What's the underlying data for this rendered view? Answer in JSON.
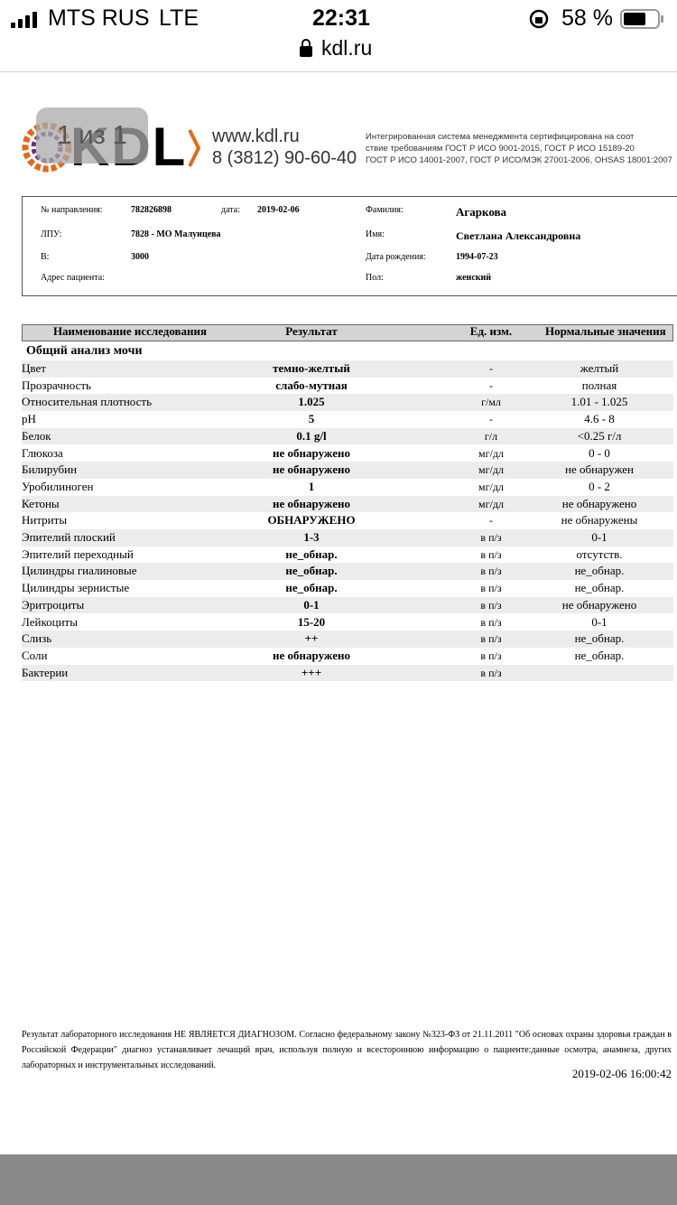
{
  "status_bar": {
    "carrier": "MTS RUS",
    "network": "LTE",
    "time": "22:31",
    "battery": "58 %",
    "url": "kdl.ru"
  },
  "viewer": {
    "page_counter": "1 из 1"
  },
  "header": {
    "logo": "KDL",
    "site": "www.kdl.ru",
    "phone": "8 (3812) 90-60-40",
    "certification": [
      "Интегрированная система менеджмента сертифицирована на соот",
      "ствие требованиям ГОСТ Р ИСО 9001-2015, ГОСТ Р ИСО 15189-20",
      "ГОСТ Р ИСО 14001-2007, ГОСТ Р ИСО/МЭК 27001-2006, OHSAS 18001:2007"
    ]
  },
  "patient": {
    "referral_label": "№ направления:",
    "referral": "782826898",
    "date_label": "дата:",
    "date": "2019-02-06",
    "lpu_label": "ЛПУ:",
    "lpu": "7828 - МО Малунцева",
    "b_label": "В:",
    "b": "3000",
    "address_label": "Адрес пациента:",
    "surname_label": "Фамилия:",
    "surname": "Агаркова",
    "name_label": "Имя:",
    "name": "Светлана Александровна",
    "birth_label": "Дата рождения:",
    "birth": "1994-07-23",
    "sex_label": "Пол:",
    "sex": "женский"
  },
  "table": {
    "columns": [
      "Наименование исследования",
      "Результат",
      "Ед. изм.",
      "Нормальные значения"
    ],
    "section": "Общий анализ мочи",
    "rows": [
      [
        "Цвет",
        "темно-желтый",
        "-",
        "желтый"
      ],
      [
        "Прозрачность",
        "слабо-мутная",
        "-",
        "полная"
      ],
      [
        "Относительная плотность",
        "1.025",
        "г/мл",
        "1.01 - 1.025"
      ],
      [
        "pH",
        "5",
        "-",
        "4.6 - 8"
      ],
      [
        "Белок",
        "0.1 g/l",
        "г/л",
        "<0.25 г/л"
      ],
      [
        "Глюкоза",
        "не обнаружено",
        "мг/дл",
        "0 - 0"
      ],
      [
        "Билирубин",
        "не обнаружено",
        "мг/дл",
        "не обнаружен"
      ],
      [
        "Уробилиноген",
        "1",
        "мг/дл",
        "0 - 2"
      ],
      [
        "Кетоны",
        "не обнаружено",
        "мг/дл",
        "не обнаружено"
      ],
      [
        "Нитриты",
        "ОБНАРУЖЕНО",
        "-",
        "не обнаружены"
      ],
      [
        "Эпителий плоский",
        "1-3",
        "в п/з",
        "0-1"
      ],
      [
        "Эпителий переходный",
        "не_обнар.",
        "в п/з",
        "отсутств."
      ],
      [
        "Цилиндры гиалиновые",
        "не_обнар.",
        "в п/з",
        "не_обнар."
      ],
      [
        "Цилиндры зернистые",
        "не_обнар.",
        "в п/з",
        "не_обнар."
      ],
      [
        "Эритроциты",
        "0-1",
        "в п/з",
        "не обнаружено"
      ],
      [
        "Лейкоциты",
        "15-20",
        "в п/з",
        "0-1"
      ],
      [
        "Слизь",
        "++",
        "в п/з",
        "не_обнар."
      ],
      [
        "Соли",
        "не обнаружено",
        "в п/з",
        "не_обнар."
      ],
      [
        "Бактерии",
        "+++",
        "в п/з",
        ""
      ]
    ]
  },
  "footer": {
    "disclaimer": "Результат лабораторного исследования НЕ ЯВЛЯЕТСЯ ДИАГНОЗОМ. Согласно федеральному закону №323-ФЗ от 21.11.2011 \"Об основах охраны здоровья граждан в Российской Федерации\" диагноз устанавливает лечащий врач, используя полную и всестороннюю информацию о пациенте:данные осмотра, анамнеза, других лабораторных и инструментальных исследований.",
    "timestamp": "2019-02-06 16:00:42"
  }
}
